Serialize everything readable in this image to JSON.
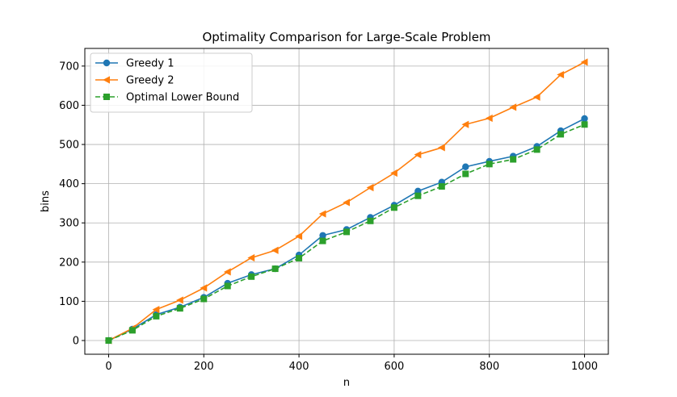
{
  "chart_data": {
    "type": "line",
    "title": "Optimality Comparison for Large-Scale Problem",
    "xlabel": "n",
    "ylabel": "bins",
    "xlim": [
      -50,
      1050
    ],
    "ylim": [
      -35,
      745
    ],
    "xticks": [
      0,
      200,
      400,
      600,
      800,
      1000
    ],
    "yticks": [
      0,
      100,
      200,
      300,
      400,
      500,
      600,
      700
    ],
    "grid": true,
    "legend_position": "upper left",
    "x": [
      0,
      50,
      100,
      150,
      200,
      250,
      300,
      350,
      400,
      450,
      500,
      550,
      600,
      650,
      700,
      750,
      800,
      850,
      900,
      950,
      1000
    ],
    "series": [
      {
        "name": "Greedy 1",
        "color": "#1f77b4",
        "marker": "circle",
        "linestyle": "solid",
        "values": [
          0,
          29,
          66,
          85,
          110,
          146,
          168,
          183,
          218,
          268,
          283,
          314,
          345,
          381,
          404,
          443,
          457,
          470,
          495,
          535,
          566
        ]
      },
      {
        "name": "Greedy 2",
        "color": "#ff7f0e",
        "marker": "triangle-left",
        "linestyle": "solid",
        "values": [
          0,
          31,
          79,
          103,
          134,
          175,
          211,
          230,
          266,
          323,
          352,
          390,
          427,
          474,
          492,
          551,
          567,
          595,
          621,
          678,
          710
        ]
      },
      {
        "name": "Optimal Lower Bound",
        "color": "#2ca02c",
        "marker": "square",
        "linestyle": "dashed",
        "values": [
          0,
          26,
          62,
          82,
          106,
          139,
          163,
          183,
          210,
          254,
          277,
          305,
          339,
          369,
          393,
          425,
          450,
          462,
          487,
          526,
          551
        ]
      }
    ]
  }
}
